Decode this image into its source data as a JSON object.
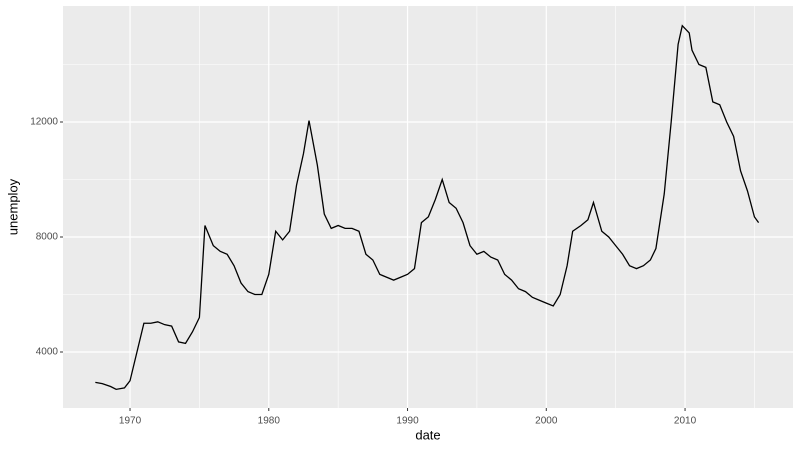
{
  "chart_data": {
    "type": "line",
    "x_label": "date",
    "y_label": "unemploy",
    "x": [
      1967.5,
      1968.0,
      1968.6,
      1969.0,
      1969.6,
      1970.0,
      1970.5,
      1971.0,
      1971.5,
      1972.0,
      1972.5,
      1973.0,
      1973.5,
      1974.0,
      1974.5,
      1975.0,
      1975.4,
      1976.0,
      1976.5,
      1977.0,
      1977.5,
      1978.0,
      1978.5,
      1979.0,
      1979.5,
      1980.0,
      1980.5,
      1981.0,
      1981.5,
      1982.0,
      1982.5,
      1982.9,
      1983.5,
      1984.0,
      1984.5,
      1985.0,
      1985.5,
      1986.0,
      1986.5,
      1987.0,
      1987.5,
      1988.0,
      1988.5,
      1989.0,
      1989.5,
      1990.0,
      1990.5,
      1991.0,
      1991.5,
      1992.0,
      1992.5,
      1993.0,
      1993.5,
      1994.0,
      1994.5,
      1995.0,
      1995.5,
      1996.0,
      1996.5,
      1997.0,
      1997.5,
      1998.0,
      1998.5,
      1999.0,
      1999.5,
      2000.0,
      2000.5,
      2001.0,
      2001.5,
      2001.9,
      2002.5,
      2003.0,
      2003.4,
      2004.0,
      2004.5,
      2005.0,
      2005.5,
      2006.0,
      2006.5,
      2007.0,
      2007.5,
      2007.9,
      2008.5,
      2009.0,
      2009.5,
      2009.8,
      2010.3,
      2010.5,
      2011.0,
      2011.5,
      2012.0,
      2012.5,
      2013.0,
      2013.5,
      2014.0,
      2014.5,
      2015.0,
      2015.3
    ],
    "series": [
      {
        "name": "unemploy",
        "color": "#000000",
        "values": [
          2944,
          2900,
          2800,
          2700,
          2750,
          3000,
          4000,
          5000,
          5000,
          5050,
          4950,
          4900,
          4350,
          4300,
          4700,
          5200,
          8400,
          7700,
          7500,
          7400,
          7000,
          6400,
          6100,
          6000,
          6000,
          6700,
          8200,
          7900,
          8200,
          9800,
          10900,
          12050,
          10500,
          8800,
          8300,
          8400,
          8300,
          8300,
          8200,
          7400,
          7200,
          6700,
          6600,
          6500,
          6600,
          6700,
          6900,
          8500,
          8700,
          9300,
          10000,
          9200,
          9000,
          8500,
          7700,
          7400,
          7500,
          7300,
          7200,
          6700,
          6500,
          6200,
          6100,
          5900,
          5800,
          5700,
          5600,
          6000,
          7000,
          8200,
          8400,
          8600,
          9200,
          8200,
          8000,
          7700,
          7400,
          7000,
          6900,
          7000,
          7200,
          7600,
          9500,
          12000,
          14700,
          15350,
          15100,
          14500,
          14000,
          13900,
          12700,
          12600,
          12000,
          11500,
          10300,
          9600,
          8700,
          8500
        ]
      }
    ],
    "xlim": [
      1965.17,
      2017.78
    ],
    "xticks": [
      1970,
      1980,
      1990,
      2000,
      2010
    ],
    "ylim": [
      2052,
      16035
    ],
    "yticks": [
      4000,
      8000,
      12000
    ],
    "grid": true
  }
}
